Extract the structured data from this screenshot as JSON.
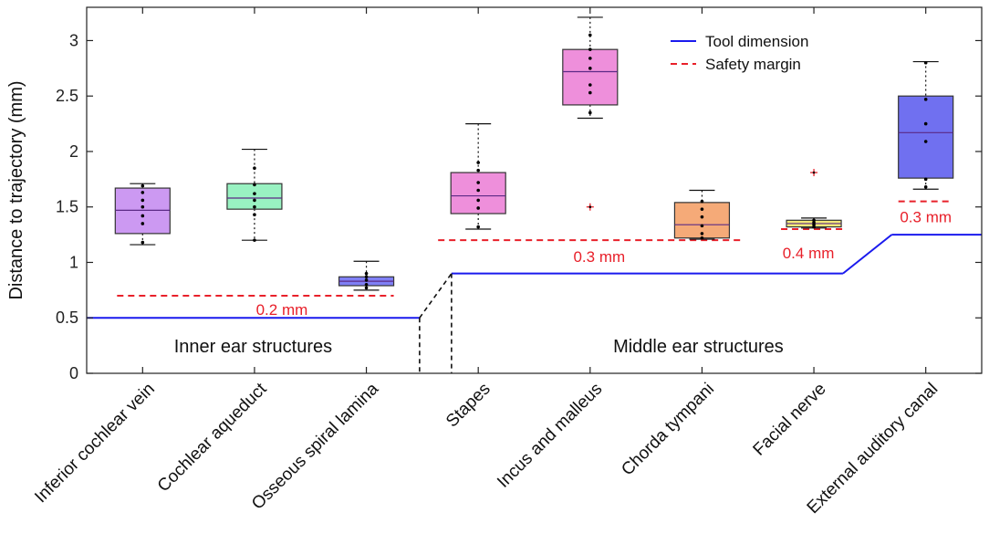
{
  "chart_data": {
    "type": "boxplot",
    "ylabel": "Distance to trajectory (mm)",
    "ylim": [
      0,
      3.3
    ],
    "yticks": [
      0,
      0.5,
      1,
      1.5,
      2,
      2.5,
      3
    ],
    "ytick_labels": [
      "0",
      "0.5",
      "1",
      "1.5",
      "2",
      "2.5",
      "3"
    ],
    "legend": [
      {
        "name": "Tool dimension",
        "style": "solid",
        "color": "#1a1aee"
      },
      {
        "name": "Safety margin",
        "style": "dashed",
        "color": "#e8202a"
      }
    ],
    "groups": [
      {
        "label": "Inner ear structures"
      },
      {
        "label": "Middle ear structures"
      }
    ],
    "categories": [
      {
        "name": "Inferior cochlear vein",
        "color": "#cc99f2",
        "q1": 1.26,
        "median": 1.47,
        "q3": 1.67,
        "whisker_low": 1.16,
        "whisker_high": 1.71,
        "points": [
          1.18,
          1.35,
          1.42,
          1.5,
          1.56,
          1.63,
          1.69
        ],
        "outliers": []
      },
      {
        "name": "Cochlear aqueduct",
        "color": "#99f2c2",
        "q1": 1.48,
        "median": 1.58,
        "q3": 1.71,
        "whisker_low": 1.2,
        "whisker_high": 2.02,
        "points": [
          1.2,
          1.43,
          1.5,
          1.56,
          1.62,
          1.7,
          1.85
        ],
        "outliers": []
      },
      {
        "name": "Osseous spiral lamina",
        "color": "#7f7ff5",
        "q1": 0.79,
        "median": 0.83,
        "q3": 0.87,
        "whisker_low": 0.75,
        "whisker_high": 1.01,
        "points": [
          0.77,
          0.8,
          0.84,
          0.87,
          0.9
        ],
        "outliers": []
      },
      {
        "name": "Stapes",
        "color": "#ee8fdb",
        "q1": 1.44,
        "median": 1.6,
        "q3": 1.81,
        "whisker_low": 1.3,
        "whisker_high": 2.25,
        "points": [
          1.32,
          1.49,
          1.56,
          1.65,
          1.72,
          1.83,
          1.9
        ],
        "outliers": []
      },
      {
        "name": "Incus and malleus",
        "color": "#ee8fdb",
        "q1": 2.42,
        "median": 2.72,
        "q3": 2.92,
        "whisker_low": 2.3,
        "whisker_high": 3.21,
        "points": [
          2.35,
          2.53,
          2.6,
          2.75,
          2.84,
          2.92,
          3.05
        ],
        "outliers": [
          1.5
        ]
      },
      {
        "name": "Chorda tympani",
        "color": "#f5aa78",
        "q1": 1.22,
        "median": 1.34,
        "q3": 1.54,
        "whisker_low": 1.21,
        "whisker_high": 1.65,
        "points": [
          1.22,
          1.26,
          1.33,
          1.41,
          1.48,
          1.55
        ],
        "outliers": []
      },
      {
        "name": "Facial nerve",
        "color": "#f2ea78",
        "q1": 1.32,
        "median": 1.35,
        "q3": 1.38,
        "whisker_low": 1.31,
        "whisker_high": 1.4,
        "points": [
          1.32,
          1.34,
          1.36,
          1.38
        ],
        "outliers": [
          1.81
        ]
      },
      {
        "name": "External auditory canal",
        "color": "#7070f0",
        "q1": 1.76,
        "median": 2.17,
        "q3": 2.5,
        "whisker_low": 1.66,
        "whisker_high": 2.81,
        "points": [
          1.68,
          1.75,
          2.09,
          2.25,
          2.47,
          2.8
        ],
        "outliers": []
      }
    ],
    "tool_dimension_segments": [
      {
        "from_index": 0,
        "to_index": 2,
        "value": 0.5
      },
      {
        "from_index": 3,
        "to_index": 6,
        "value": 0.9
      },
      {
        "from_index": 7,
        "to_index": 7,
        "value": 1.25
      }
    ],
    "safety_margins": [
      {
        "from_index": 0,
        "to_index": 2,
        "value": 0.7,
        "label": "0.2 mm"
      },
      {
        "from_index": 3,
        "to_index": 6,
        "value": 1.2,
        "label": "0.3 mm"
      },
      {
        "from_index": 6,
        "to_index": 6,
        "value": 1.3,
        "label": "0.4 mm"
      },
      {
        "from_index": 7,
        "to_index": 7,
        "value": 1.55,
        "label": "0.3 mm"
      }
    ]
  }
}
